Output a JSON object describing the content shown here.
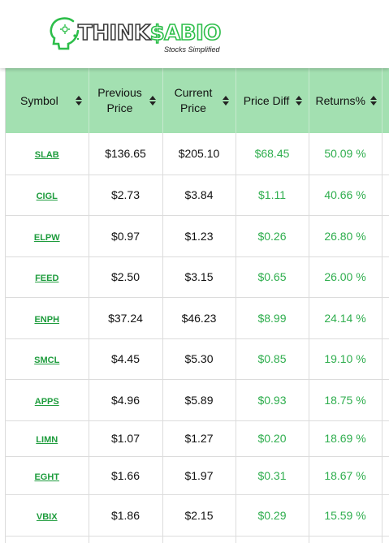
{
  "brand": {
    "name_part1": "THINK",
    "name_part2": "$ABIO",
    "tagline": "Stocks Simplified",
    "accent_color": "#2dbe4a",
    "header_color": "#a3e0b1",
    "positive_color": "#2fae4e"
  },
  "table": {
    "headers": {
      "symbol": "Symbol",
      "previous_price": "Previous Price",
      "current_price": "Current Price",
      "price_diff": "Price Diff",
      "returns": "Returns%"
    },
    "rows": [
      {
        "symbol": "SLAB",
        "previous": "$136.65",
        "current": "$205.10",
        "diff": "$68.45",
        "returns": "50.09 %"
      },
      {
        "symbol": "CIGL",
        "previous": "$2.73",
        "current": "$3.84",
        "diff": "$1.11",
        "returns": "40.66 %"
      },
      {
        "symbol": "ELPW",
        "previous": "$0.97",
        "current": "$1.23",
        "diff": "$0.26",
        "returns": "26.80 %"
      },
      {
        "symbol": "FEED",
        "previous": "$2.50",
        "current": "$3.15",
        "diff": "$0.65",
        "returns": "26.00 %"
      },
      {
        "symbol": "ENPH",
        "previous": "$37.24",
        "current": "$46.23",
        "diff": "$8.99",
        "returns": "24.14 %"
      },
      {
        "symbol": "SMCL",
        "previous": "$4.45",
        "current": "$5.30",
        "diff": "$0.85",
        "returns": "19.10 %"
      },
      {
        "symbol": "APPS",
        "previous": "$4.96",
        "current": "$5.89",
        "diff": "$0.93",
        "returns": "18.75 %"
      },
      {
        "symbol": "LIMN",
        "previous": "$1.07",
        "current": "$1.27",
        "diff": "$0.20",
        "returns": "18.69 %"
      },
      {
        "symbol": "EGHT",
        "previous": "$1.66",
        "current": "$1.97",
        "diff": "$0.31",
        "returns": "18.67 %"
      },
      {
        "symbol": "VBIX",
        "previous": "$1.86",
        "current": "$2.15",
        "diff": "$0.29",
        "returns": "15.59 %"
      }
    ]
  }
}
